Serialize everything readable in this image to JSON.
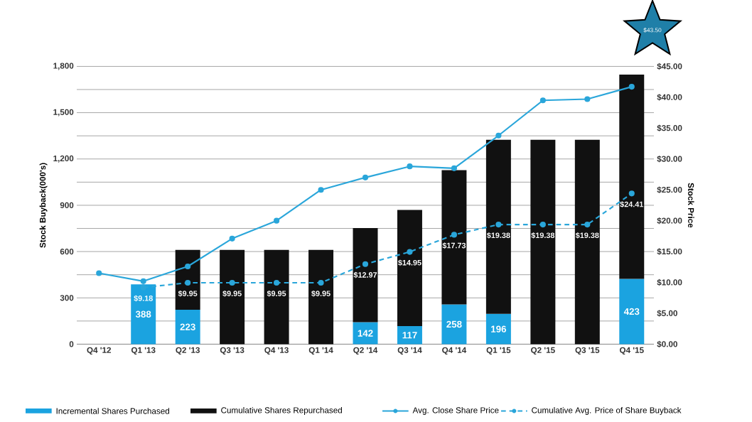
{
  "chart_data": {
    "type": "bar",
    "stacked": true,
    "ylabel": "Stock Buyback(000's)",
    "y2label": "Stock Price",
    "categories": [
      "Q4 '12",
      "Q1 '13",
      "Q2 '13",
      "Q3 '13",
      "Q4 '13",
      "Q1 '14",
      "Q2 '14",
      "Q3 '14",
      "Q4 '14",
      "Q1 '15",
      "Q2 '15",
      "Q3 '15",
      "Q4 '15"
    ],
    "series": [
      {
        "name": "Incremental Shares Purchased",
        "color": "#1ba3e0",
        "values": [
          null,
          388,
          223,
          null,
          null,
          null,
          142,
          117,
          258,
          196,
          null,
          null,
          423
        ],
        "value_labels": [
          null,
          "388",
          "223",
          null,
          null,
          null,
          "142",
          "117",
          "258",
          "196",
          null,
          null,
          "423"
        ]
      },
      {
        "name": "Cumulative Shares Repurchased",
        "color": "#111111",
        "values": [
          null,
          null,
          388,
          611,
          611,
          611,
          611,
          753,
          870,
          1128,
          1324,
          1324,
          1324
        ]
      },
      {
        "name": "Avg. Close Share Price",
        "type": "line",
        "axis": "y2",
        "color": "#2aa6da",
        "marker": "circle",
        "line_style": "solid",
        "values": [
          11.5,
          10.2,
          12.6,
          17.1,
          20.0,
          25.0,
          27.0,
          28.8,
          28.5,
          33.8,
          39.5,
          39.7,
          41.7
        ]
      },
      {
        "name": "Cumulative Avg. Price of Share Buyback",
        "type": "line",
        "axis": "y2",
        "color": "#2aa6da",
        "marker": "circle",
        "line_style": "dashed",
        "values": [
          null,
          9.18,
          9.95,
          9.95,
          9.95,
          9.95,
          12.97,
          14.95,
          17.73,
          19.38,
          19.38,
          19.38,
          24.41
        ],
        "value_labels": [
          null,
          "$9.18",
          "$9.95",
          "$9.95",
          "$9.95",
          "$9.95",
          "$12.97",
          "$14.95",
          "$17.73",
          "$19.38",
          "$19.38",
          "$19.38",
          "$24.41"
        ]
      }
    ],
    "ylim": [
      0,
      1800
    ],
    "yticks": [
      0,
      {
        "value": 150,
        "label": null
      },
      {
        "value": 300,
        "label": "300"
      },
      {
        "value": 450,
        "label": null
      },
      {
        "value": 600,
        "label": "600"
      },
      {
        "value": 750,
        "label": null
      },
      {
        "value": 900,
        "label": "900"
      },
      {
        "value": 1050,
        "label": null
      },
      {
        "value": 1200,
        "label": "1,200"
      },
      {
        "value": 1350,
        "label": null
      },
      {
        "value": 1500,
        "label": "1,500"
      },
      {
        "value": 1650,
        "label": null
      },
      {
        "value": 1800,
        "label": "1,800"
      }
    ],
    "y2lim": [
      0,
      45
    ],
    "y2ticks": [
      {
        "value": 0,
        "label": "$0.00"
      },
      {
        "value": 5,
        "label": "$5.00"
      },
      {
        "value": 10,
        "label": "$10.00"
      },
      {
        "value": 15,
        "label": "$15.00"
      },
      {
        "value": 20,
        "label": "$20.00"
      },
      {
        "value": 25,
        "label": "$25.00"
      },
      {
        "value": 30,
        "label": "$30.00"
      },
      {
        "value": 35,
        "label": "$35.00"
      },
      {
        "value": 40,
        "label": "$40.00"
      },
      {
        "value": 45,
        "label": "$45.00"
      }
    ],
    "grid": "y",
    "legend": "bottom",
    "annotations": [
      "$43.50"
    ]
  }
}
